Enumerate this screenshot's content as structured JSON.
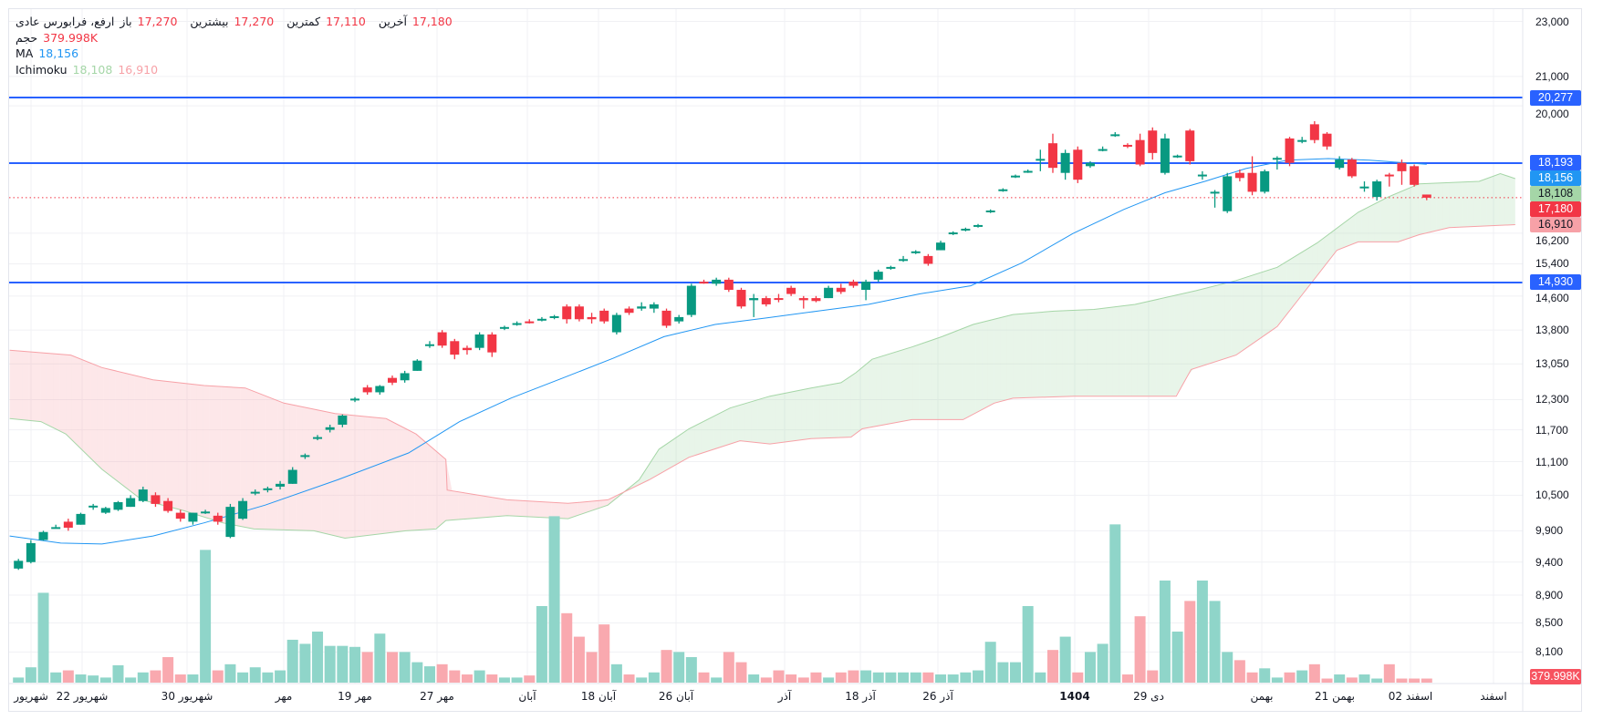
{
  "legend": {
    "symbol": "ارفع، فرابورس عادی",
    "open_label": "باز",
    "open": "17,270",
    "high_label": "بیشترین",
    "high": "17,270",
    "low_label": "کمترین",
    "low": "17,110",
    "close_label": "آخرین",
    "close": "17,180",
    "volume_label": "حجم",
    "volume": "379.998K",
    "ma_label": "MA",
    "ma": "18,156",
    "ichimoku_label": "Ichimoku",
    "ichimoku_a": "18,108",
    "ichimoku_b": "16,910"
  },
  "colors": {
    "up": "#089981",
    "down": "#f23645",
    "volume_up": "#8fd5c9",
    "volume_down": "#f9a9af",
    "ma": "#2196f3",
    "span_a": "#a5d6a7",
    "span_b": "#f7a1a7",
    "cloud_up": "rgba(165,214,167,0.25)",
    "cloud_down": "rgba(247,161,167,0.25)",
    "hline": "#2962ff",
    "grid": "#f0f1f4"
  },
  "chart_data": {
    "type": "candlestick",
    "scale": "log",
    "price_range": [
      7700,
      23000
    ],
    "price_ticks": [
      "23,000",
      "21,000",
      "20,000",
      "16,200",
      "15,400",
      "14,600",
      "13,800",
      "13,050",
      "12,300",
      "11,700",
      "11,100",
      "10,500",
      "9,900",
      "9,400",
      "8,900",
      "8,500",
      "8,100"
    ],
    "time_labels": [
      {
        "text": "شهریور",
        "bold": false
      },
      {
        "text": "22 شهریور",
        "bold": false
      },
      {
        "text": "30 شهریور",
        "bold": false
      },
      {
        "text": "مهر",
        "bold": false
      },
      {
        "text": "19 مهر",
        "bold": false
      },
      {
        "text": "27 مهر",
        "bold": false
      },
      {
        "text": "آبان",
        "bold": false
      },
      {
        "text": "18 آبان",
        "bold": false
      },
      {
        "text": "26 آبان",
        "bold": false
      },
      {
        "text": "آذر",
        "bold": false
      },
      {
        "text": "18 آذر",
        "bold": false
      },
      {
        "text": "26 آذر",
        "bold": false
      },
      {
        "text": "1404",
        "bold": true
      },
      {
        "text": "29 دی",
        "bold": false
      },
      {
        "text": "بهمن",
        "bold": false
      },
      {
        "text": "21 بهمن",
        "bold": false
      },
      {
        "text": "02 اسفند",
        "bold": false
      },
      {
        "text": "اسفند",
        "bold": false
      }
    ],
    "candles": [
      [
        9300,
        9450,
        9280,
        9420
      ],
      [
        9400,
        9750,
        9380,
        9700
      ],
      [
        9750,
        9900,
        9740,
        9880
      ],
      [
        9950,
        10000,
        9940,
        9960
      ],
      [
        10050,
        10100,
        9900,
        9950
      ],
      [
        10000,
        10200,
        10000,
        10180
      ],
      [
        10300,
        10350,
        10250,
        10320
      ],
      [
        10200,
        10300,
        10180,
        10280
      ],
      [
        10250,
        10400,
        10230,
        10380
      ],
      [
        10300,
        10500,
        10300,
        10450
      ],
      [
        10400,
        10650,
        10380,
        10600
      ],
      [
        10500,
        10550,
        10300,
        10350
      ],
      [
        10400,
        10450,
        10200,
        10230
      ],
      [
        10200,
        10250,
        10050,
        10100
      ],
      [
        10050,
        10200,
        10000,
        10200
      ],
      [
        10200,
        10250,
        10180,
        10220
      ],
      [
        10150,
        10200,
        10000,
        10050
      ],
      [
        9800,
        10350,
        9780,
        10300
      ],
      [
        10100,
        10450,
        10080,
        10400
      ],
      [
        10550,
        10600,
        10500,
        10560
      ],
      [
        10600,
        10650,
        10550,
        10620
      ],
      [
        10650,
        10750,
        10600,
        10700
      ],
      [
        10700,
        11000,
        10700,
        10950
      ],
      [
        11200,
        11250,
        11150,
        11220
      ],
      [
        11550,
        11600,
        11500,
        11560
      ],
      [
        11700,
        11800,
        11650,
        11750
      ],
      [
        11800,
        12000,
        11750,
        11980
      ],
      [
        12300,
        12350,
        12250,
        12320
      ],
      [
        12550,
        12600,
        12400,
        12450
      ],
      [
        12450,
        12600,
        12400,
        12580
      ],
      [
        12750,
        12800,
        12600,
        12650
      ],
      [
        12700,
        12900,
        12650,
        12850
      ],
      [
        12900,
        13150,
        12900,
        13120
      ],
      [
        13450,
        13550,
        13400,
        13480
      ],
      [
        13750,
        13800,
        13400,
        13450
      ],
      [
        13550,
        13600,
        13150,
        13250
      ],
      [
        13400,
        13450,
        13250,
        13350
      ],
      [
        13400,
        13750,
        13350,
        13700
      ],
      [
        13700,
        13750,
        13200,
        13300
      ],
      [
        13850,
        13900,
        13800,
        13870
      ],
      [
        13950,
        14000,
        13900,
        13960
      ],
      [
        14000,
        14050,
        13950,
        13980
      ],
      [
        14050,
        14100,
        14000,
        14060
      ],
      [
        14100,
        14150,
        14050,
        14120
      ],
      [
        14350,
        14400,
        13950,
        14050
      ],
      [
        14350,
        14400,
        14000,
        14050
      ],
      [
        14100,
        14200,
        13950,
        14050
      ],
      [
        14250,
        14300,
        13950,
        14000
      ],
      [
        13750,
        14200,
        13700,
        14150
      ],
      [
        14300,
        14350,
        14150,
        14200
      ],
      [
        14300,
        14450,
        14250,
        14350
      ],
      [
        14300,
        14450,
        14200,
        14400
      ],
      [
        14250,
        14300,
        13850,
        13900
      ],
      [
        14000,
        14150,
        13950,
        14100
      ],
      [
        14150,
        14900,
        14100,
        14850
      ],
      [
        14950,
        15000,
        14900,
        14920
      ],
      [
        14900,
        15050,
        14850,
        15000
      ],
      [
        15000,
        15050,
        14700,
        14750
      ],
      [
        14750,
        14800,
        14300,
        14350
      ],
      [
        14500,
        14650,
        14100,
        14550
      ],
      [
        14550,
        14600,
        14350,
        14400
      ],
      [
        14550,
        14650,
        14450,
        14520
      ],
      [
        14800,
        14850,
        14600,
        14650
      ],
      [
        14550,
        14600,
        14300,
        14500
      ],
      [
        14550,
        14600,
        14450,
        14480
      ],
      [
        14550,
        14850,
        14550,
        14800
      ],
      [
        14800,
        14900,
        14650,
        14700
      ],
      [
        14950,
        15000,
        14800,
        14850
      ],
      [
        14750,
        15000,
        14500,
        14950
      ],
      [
        15000,
        15250,
        14950,
        15200
      ],
      [
        15300,
        15350,
        15250,
        15320
      ],
      [
        15500,
        15600,
        15450,
        15520
      ],
      [
        15700,
        15750,
        15650,
        15720
      ],
      [
        15600,
        15650,
        15350,
        15400
      ],
      [
        15750,
        16000,
        15750,
        15950
      ],
      [
        16200,
        16250,
        16150,
        16220
      ],
      [
        16300,
        16350,
        16250,
        16320
      ],
      [
        16400,
        16450,
        16350,
        16420
      ],
      [
        16800,
        16850,
        16750,
        16820
      ],
      [
        17400,
        17450,
        17350,
        17420
      ],
      [
        17800,
        17850,
        17750,
        17820
      ],
      [
        17950,
        18000,
        17900,
        17960
      ],
      [
        18300,
        18600,
        17950,
        18320
      ],
      [
        18800,
        19100,
        17900,
        18050
      ],
      [
        17900,
        18600,
        17700,
        18500
      ],
      [
        18600,
        18700,
        17600,
        17700
      ],
      [
        18100,
        18250,
        18050,
        18200
      ],
      [
        18600,
        18700,
        18550,
        18620
      ],
      [
        19050,
        19150,
        19000,
        19080
      ],
      [
        18750,
        18800,
        18650,
        18700
      ],
      [
        18900,
        19100,
        18100,
        18150
      ],
      [
        19200,
        19300,
        18300,
        18500
      ],
      [
        17900,
        19100,
        17850,
        18950
      ],
      [
        18400,
        18450,
        18350,
        18420
      ],
      [
        19200,
        19250,
        18150,
        18250
      ],
      [
        17800,
        17950,
        17700,
        17850
      ],
      [
        17300,
        17400,
        16900,
        17350
      ],
      [
        16800,
        17900,
        16750,
        17800
      ],
      [
        17900,
        18000,
        17650,
        17750
      ],
      [
        17900,
        18400,
        17250,
        17350
      ],
      [
        17350,
        18000,
        17300,
        17950
      ],
      [
        18300,
        18400,
        18000,
        18350
      ],
      [
        18950,
        19000,
        18100,
        18200
      ],
      [
        18850,
        19000,
        18800,
        18900
      ],
      [
        19400,
        19500,
        18800,
        18900
      ],
      [
        19100,
        19150,
        18600,
        18700
      ],
      [
        18050,
        18400,
        18000,
        18300
      ],
      [
        18300,
        18350,
        17750,
        17800
      ],
      [
        17450,
        17650,
        17350,
        17500
      ],
      [
        17200,
        17700,
        17100,
        17650
      ],
      [
        17850,
        17900,
        17500,
        17800
      ],
      [
        18200,
        18300,
        17550,
        17950
      ],
      [
        18100,
        18150,
        17500,
        17550
      ],
      [
        17270,
        17270,
        17110,
        17180
      ]
    ],
    "volumes_k": [
      475,
      1425,
      8360,
      950,
      1140,
      760,
      665,
      475,
      1615,
      475,
      950,
      1140,
      2375,
      760,
      760,
      12350,
      1140,
      1710,
      950,
      1425,
      950,
      1140,
      3990,
      3610,
      4750,
      3420,
      3420,
      3325,
      2850,
      4560,
      2850,
      2850,
      1900,
      1520,
      1710,
      1140,
      760,
      1140,
      760,
      475,
      475,
      665,
      7125,
      15485,
      6460,
      4275,
      2850,
      5415,
      1710,
      760,
      475,
      950,
      3040,
      2850,
      2375,
      950,
      475,
      2850,
      1900,
      760,
      475,
      1140,
      760,
      475,
      950,
      475,
      950,
      1140,
      1140,
      950,
      950,
      950,
      950,
      950,
      760,
      760,
      950,
      1140,
      3800,
      1900,
      1900,
      7125,
      950,
      3040,
      4275,
      950,
      2850,
      3610,
      14725,
      760,
      6175,
      1140,
      9500,
      4750,
      7600,
      9500,
      7600,
      2850,
      2090,
      950,
      1330,
      475,
      950,
      1140,
      1710,
      380,
      760,
      475,
      760,
      380,
      1710,
      380,
      380,
      379.998
    ],
    "ma": [
      [
        -0.7,
        9815
      ],
      [
        3.4,
        9700
      ],
      [
        6.7,
        9685
      ],
      [
        10.8,
        9815
      ],
      [
        14.9,
        10030
      ],
      [
        19.8,
        10330
      ],
      [
        25.6,
        10770
      ],
      [
        31.3,
        11260
      ],
      [
        35.4,
        11860
      ],
      [
        39.5,
        12330
      ],
      [
        43.6,
        12740
      ],
      [
        47.7,
        13170
      ],
      [
        51.8,
        13650
      ],
      [
        55.9,
        13930
      ],
      [
        60,
        14080
      ],
      [
        64.1,
        14240
      ],
      [
        68.2,
        14400
      ],
      [
        72.3,
        14650
      ],
      [
        76.4,
        14850
      ],
      [
        80.5,
        15420
      ],
      [
        84.6,
        16190
      ],
      [
        88.7,
        16850
      ],
      [
        92,
        17320
      ],
      [
        95.2,
        17650
      ],
      [
        98.5,
        18030
      ],
      [
        101.8,
        18280
      ],
      [
        105.1,
        18330
      ],
      [
        108.4,
        18280
      ],
      [
        113,
        18156
      ]
    ],
    "ichimoku_span_a": [
      [
        -0.7,
        11920
      ],
      [
        1.8,
        11860
      ],
      [
        3.8,
        11620
      ],
      [
        6.7,
        10960
      ],
      [
        9.9,
        10420
      ],
      [
        13.2,
        10240
      ],
      [
        16.4,
        10030
      ],
      [
        18.9,
        9930
      ],
      [
        23.7,
        9900
      ],
      [
        26.2,
        9780
      ],
      [
        31.1,
        9900
      ],
      [
        33.5,
        9930
      ],
      [
        34.3,
        10070
      ],
      [
        39.2,
        10150
      ],
      [
        44.1,
        10100
      ],
      [
        47.3,
        10330
      ],
      [
        49.8,
        10770
      ],
      [
        51.4,
        11330
      ],
      [
        53.8,
        11720
      ],
      [
        57.1,
        12130
      ],
      [
        60.3,
        12370
      ],
      [
        63.6,
        12540
      ],
      [
        66,
        12650
      ],
      [
        67.2,
        12860
      ],
      [
        68.5,
        13150
      ],
      [
        71.7,
        13420
      ],
      [
        74.1,
        13650
      ],
      [
        76.6,
        13930
      ],
      [
        79.8,
        14160
      ],
      [
        83.1,
        14240
      ],
      [
        86.3,
        14280
      ],
      [
        89.6,
        14400
      ],
      [
        94.5,
        14730
      ],
      [
        97.7,
        14980
      ],
      [
        101,
        15310
      ],
      [
        104.2,
        15940
      ],
      [
        107.5,
        16770
      ],
      [
        109.9,
        17200
      ],
      [
        112.4,
        17580
      ],
      [
        117.2,
        17650
      ],
      [
        118.9,
        17880
      ],
      [
        120.1,
        17730
      ]
    ],
    "ichimoku_span_b": [
      [
        -0.7,
        13350
      ],
      [
        4.2,
        13240
      ],
      [
        6.7,
        12970
      ],
      [
        10.8,
        12710
      ],
      [
        14.9,
        12590
      ],
      [
        18.2,
        12540
      ],
      [
        21.3,
        12230
      ],
      [
        25.4,
        12020
      ],
      [
        29.5,
        11920
      ],
      [
        31.9,
        11620
      ],
      [
        34.3,
        11140
      ],
      [
        34.4,
        10590
      ],
      [
        39.2,
        10420
      ],
      [
        44.1,
        10360
      ],
      [
        47.3,
        10420
      ],
      [
        50.6,
        10770
      ],
      [
        53.8,
        11180
      ],
      [
        57.9,
        11490
      ],
      [
        60.3,
        11430
      ],
      [
        63.6,
        11530
      ],
      [
        66.8,
        11560
      ],
      [
        67.7,
        11720
      ],
      [
        71.7,
        11900
      ],
      [
        75.8,
        11900
      ],
      [
        78.3,
        12230
      ],
      [
        79.8,
        12330
      ],
      [
        84.7,
        12370
      ],
      [
        92.9,
        12370
      ],
      [
        94.1,
        12930
      ],
      [
        97.7,
        13240
      ],
      [
        101,
        13880
      ],
      [
        104.2,
        15100
      ],
      [
        105.8,
        15750
      ],
      [
        107.5,
        15970
      ],
      [
        110.7,
        15970
      ],
      [
        112.4,
        16160
      ],
      [
        114.8,
        16350
      ],
      [
        120.1,
        16430
      ]
    ],
    "horizontal_lines": [
      20277,
      18193,
      14930
    ],
    "last_price": 17180,
    "price_badges": [
      {
        "text": "20,277",
        "value": 20277,
        "bg": "#2962ff",
        "fg": "#ffffff"
      },
      {
        "text": "18,193",
        "value": 18193,
        "bg": "#2962ff",
        "fg": "#ffffff"
      },
      {
        "text": "18,156",
        "value": 18156,
        "bg": "#2196f3",
        "fg": "#ffffff"
      },
      {
        "text": "18,108",
        "value": 18108,
        "bg": "#a5d6a7",
        "fg": "#131722"
      },
      {
        "text": "17,180",
        "value": 17180,
        "bg": "#f23645",
        "fg": "#ffffff"
      },
      {
        "text": "16,910",
        "value": 16910,
        "bg": "#f7a1a7",
        "fg": "#131722"
      },
      {
        "text": "14,930",
        "value": 14930,
        "bg": "#2962ff",
        "fg": "#ffffff"
      }
    ],
    "volume_badge": {
      "text": "379.998K",
      "bg": "#f7525f",
      "fg": "#ffffff"
    }
  }
}
